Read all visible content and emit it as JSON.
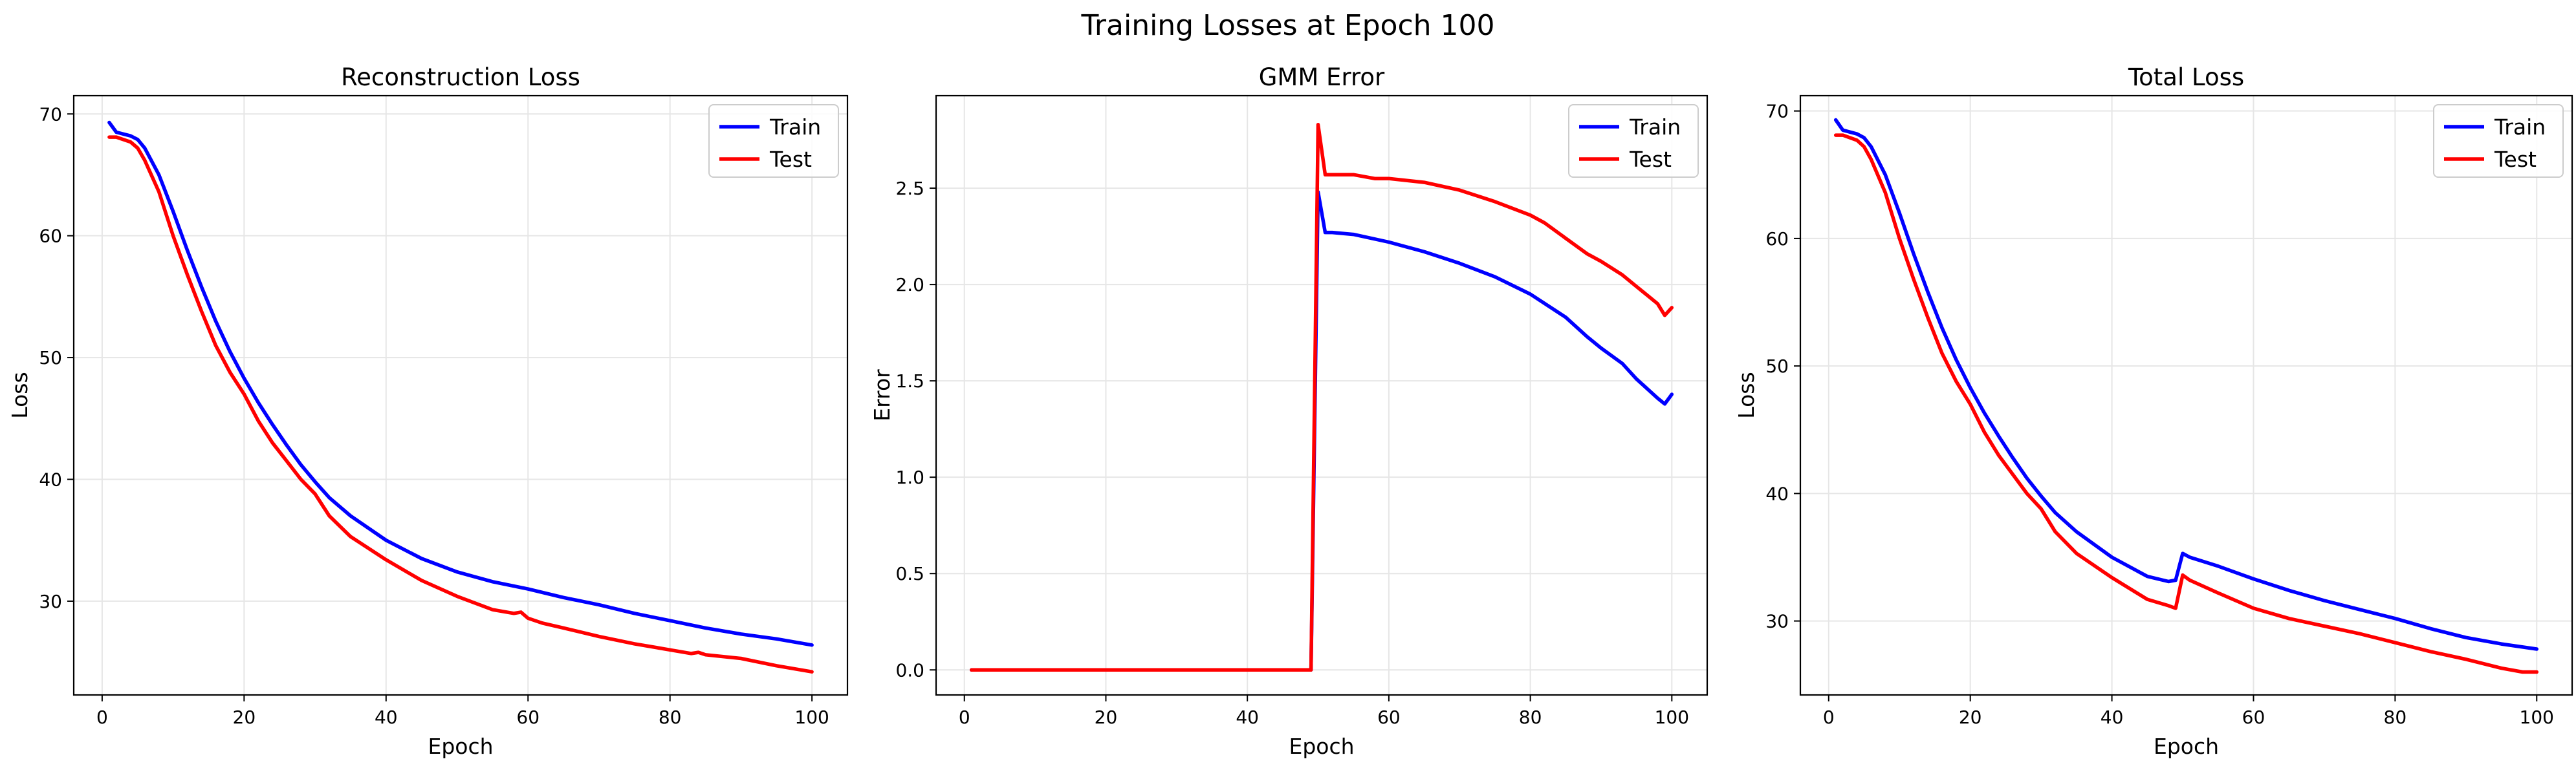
{
  "figure": {
    "suptitle": "Training Losses at Epoch 100"
  },
  "chart_data": [
    {
      "type": "line",
      "title": "Reconstruction Loss",
      "xlabel": "Epoch",
      "ylabel": "Loss",
      "xlim": [
        -4,
        105
      ],
      "ylim": [
        22.3,
        71.5
      ],
      "xticks": [
        0,
        20,
        40,
        60,
        80,
        100
      ],
      "yticks": [
        30,
        40,
        50,
        60,
        70
      ],
      "grid": true,
      "legend": "top-right",
      "series": [
        {
          "name": "Train",
          "color": "#0000ff",
          "x": [
            1,
            2,
            4,
            5,
            6,
            8,
            10,
            12,
            14,
            16,
            18,
            20,
            22,
            24,
            26,
            28,
            30,
            32,
            35,
            40,
            45,
            50,
            55,
            60,
            65,
            70,
            75,
            80,
            85,
            90,
            95,
            100
          ],
          "y": [
            69.3,
            68.5,
            68.2,
            67.9,
            67.2,
            65.0,
            62.0,
            58.8,
            55.8,
            53.0,
            50.5,
            48.3,
            46.3,
            44.5,
            42.8,
            41.2,
            39.8,
            38.5,
            37.0,
            35.0,
            33.5,
            32.4,
            31.6,
            31.0,
            30.3,
            29.7,
            29.0,
            28.4,
            27.8,
            27.3,
            26.9,
            26.4
          ]
        },
        {
          "name": "Test",
          "color": "#ff0000",
          "x": [
            1,
            2,
            4,
            5,
            6,
            8,
            10,
            12,
            14,
            16,
            18,
            20,
            22,
            24,
            26,
            28,
            30,
            32,
            35,
            40,
            45,
            50,
            55,
            58,
            59,
            60,
            62,
            65,
            70,
            75,
            80,
            83,
            84,
            85,
            90,
            95,
            100
          ],
          "y": [
            68.1,
            68.1,
            67.7,
            67.2,
            66.2,
            63.6,
            60.0,
            56.8,
            53.8,
            51.0,
            48.8,
            47.0,
            44.8,
            43.0,
            41.5,
            40.0,
            38.8,
            37.0,
            35.3,
            33.4,
            31.7,
            30.4,
            29.3,
            29.0,
            29.1,
            28.6,
            28.2,
            27.8,
            27.1,
            26.5,
            26.0,
            25.7,
            25.8,
            25.6,
            25.3,
            24.7,
            24.2
          ]
        }
      ]
    },
    {
      "type": "line",
      "title": "GMM Error",
      "xlabel": "Epoch",
      "ylabel": "Error",
      "xlim": [
        -4,
        105
      ],
      "ylim": [
        -0.13,
        2.98
      ],
      "xticks": [
        0,
        20,
        40,
        60,
        80,
        100
      ],
      "yticks": [
        0.0,
        0.5,
        1.0,
        1.5,
        2.0,
        2.5
      ],
      "grid": true,
      "legend": "top-right",
      "series": [
        {
          "name": "Train",
          "color": "#0000ff",
          "x": [
            1,
            48,
            49,
            50,
            51,
            52,
            55,
            60,
            65,
            70,
            75,
            80,
            85,
            88,
            90,
            93,
            95,
            98,
            99,
            100
          ],
          "y": [
            0.0,
            0.0,
            0.0,
            2.48,
            2.27,
            2.27,
            2.26,
            2.22,
            2.17,
            2.11,
            2.04,
            1.95,
            1.83,
            1.73,
            1.67,
            1.59,
            1.51,
            1.41,
            1.38,
            1.43
          ]
        },
        {
          "name": "Test",
          "color": "#ff0000",
          "x": [
            1,
            48,
            49,
            50,
            51,
            52,
            55,
            58,
            60,
            65,
            70,
            75,
            80,
            82,
            85,
            88,
            90,
            93,
            95,
            98,
            99,
            100
          ],
          "y": [
            0.0,
            0.0,
            0.0,
            2.83,
            2.57,
            2.57,
            2.57,
            2.55,
            2.55,
            2.53,
            2.49,
            2.43,
            2.36,
            2.32,
            2.24,
            2.16,
            2.12,
            2.05,
            1.99,
            1.9,
            1.84,
            1.88
          ]
        }
      ]
    },
    {
      "type": "line",
      "title": "Total Loss",
      "xlabel": "Epoch",
      "ylabel": "Loss",
      "xlim": [
        -4,
        105
      ],
      "ylim": [
        24.2,
        71.2
      ],
      "xticks": [
        0,
        20,
        40,
        60,
        80,
        100
      ],
      "yticks": [
        30,
        40,
        50,
        60,
        70
      ],
      "grid": true,
      "legend": "top-right",
      "series": [
        {
          "name": "Train",
          "color": "#0000ff",
          "x": [
            1,
            2,
            4,
            5,
            6,
            8,
            10,
            12,
            14,
            16,
            18,
            20,
            22,
            24,
            26,
            28,
            30,
            32,
            35,
            40,
            45,
            48,
            49,
            50,
            51,
            55,
            60,
            65,
            70,
            75,
            80,
            85,
            90,
            95,
            100
          ],
          "y": [
            69.3,
            68.5,
            68.2,
            67.9,
            67.2,
            65.0,
            62.0,
            58.8,
            55.8,
            53.0,
            50.5,
            48.3,
            46.3,
            44.5,
            42.8,
            41.2,
            39.8,
            38.5,
            37.0,
            35.0,
            33.5,
            33.1,
            33.2,
            35.3,
            35.0,
            34.3,
            33.3,
            32.4,
            31.6,
            30.9,
            30.2,
            29.4,
            28.7,
            28.2,
            27.8
          ]
        },
        {
          "name": "Test",
          "color": "#ff0000",
          "x": [
            1,
            2,
            4,
            5,
            6,
            8,
            10,
            12,
            14,
            16,
            18,
            20,
            22,
            24,
            26,
            28,
            30,
            32,
            35,
            40,
            45,
            48,
            49,
            50,
            51,
            55,
            60,
            65,
            70,
            75,
            80,
            85,
            90,
            95,
            98,
            100
          ],
          "y": [
            68.1,
            68.1,
            67.7,
            67.2,
            66.2,
            63.6,
            60.0,
            56.8,
            53.8,
            51.0,
            48.8,
            47.0,
            44.8,
            43.0,
            41.5,
            40.0,
            38.8,
            37.0,
            35.3,
            33.4,
            31.7,
            31.2,
            31.0,
            33.6,
            33.2,
            32.2,
            31.0,
            30.2,
            29.6,
            29.0,
            28.3,
            27.6,
            27.0,
            26.3,
            26.0,
            26.0
          ]
        }
      ]
    }
  ]
}
